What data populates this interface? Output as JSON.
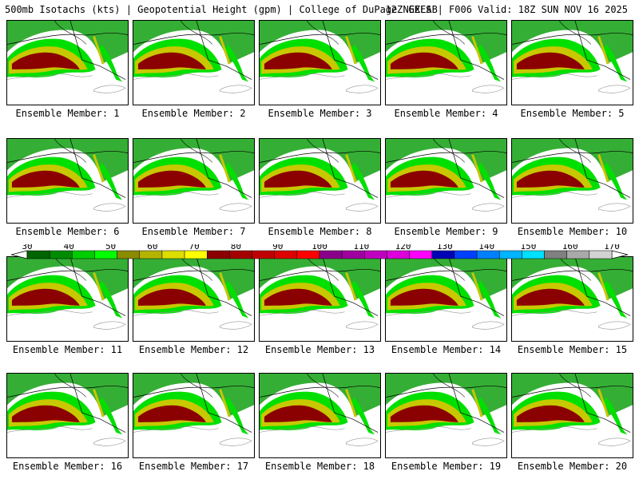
{
  "header": {
    "left": "500mb Isotachs (kts) | Geopotential Height (gpm) | College of DuPage NEXLAB",
    "right": "12Z GEFS | F006 Valid: 18Z SUN NOV 16 2025"
  },
  "caption_prefix": "Ensemble Member:",
  "members": [
    "Ensemble Member: 1",
    "Ensemble Member: 2",
    "Ensemble Member: 3",
    "Ensemble Member: 4",
    "Ensemble Member: 5",
    "Ensemble Member: 6",
    "Ensemble Member: 7",
    "Ensemble Member: 8",
    "Ensemble Member: 9",
    "Ensemble Member: 10",
    "Ensemble Member: 11",
    "Ensemble Member: 12",
    "Ensemble Member: 13",
    "Ensemble Member: 14",
    "Ensemble Member: 15",
    "Ensemble Member: 16",
    "Ensemble Member: 17",
    "Ensemble Member: 18",
    "Ensemble Member: 19",
    "Ensemble Member: 20"
  ],
  "colorbar": {
    "labels": [
      "30",
      "40",
      "50",
      "60",
      "70",
      "80",
      "90",
      "100",
      "110",
      "120",
      "130",
      "140",
      "150",
      "160",
      "170"
    ],
    "colors": [
      "#006400",
      "#008b00",
      "#00cd00",
      "#00ff00",
      "#8b8b00",
      "#b4b400",
      "#dddd00",
      "#ffff00",
      "#8b0000",
      "#a50000",
      "#c00000",
      "#dd0000",
      "#ff0000",
      "#8b008b",
      "#a000a0",
      "#c000c0",
      "#dd00dd",
      "#ff00ff",
      "#0000b4",
      "#0040ff",
      "#0080ff",
      "#00b4ff",
      "#00e0ff",
      "#808080",
      "#a9a9a9",
      "#d3d3d3"
    ]
  },
  "map_colors": {
    "weak": "#1fa51f",
    "mid": "#00e000",
    "strong": "#c8c800",
    "core": "#8b0000",
    "coast": "#000000",
    "land": "#9a9a9a"
  }
}
